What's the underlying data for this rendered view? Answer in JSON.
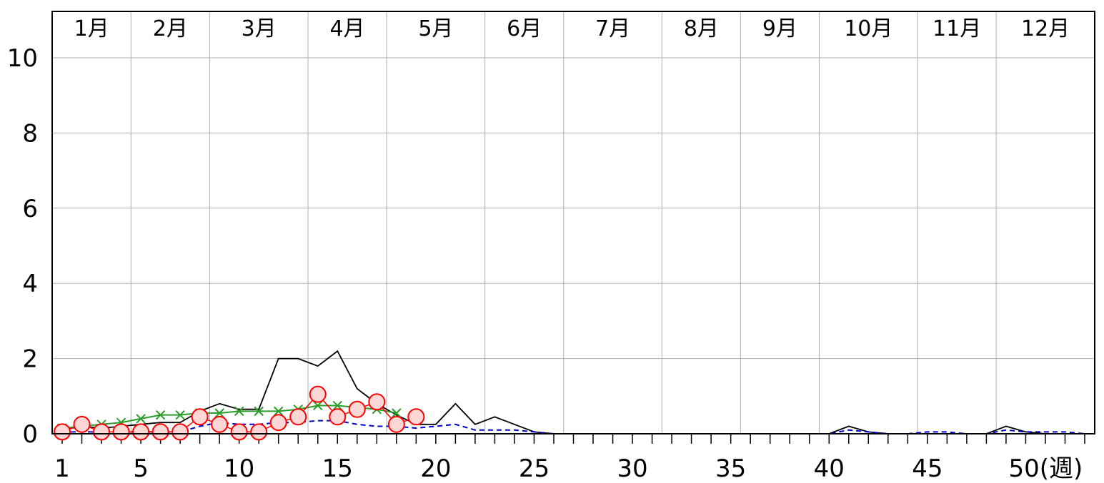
{
  "chart_data": {
    "type": "line",
    "x_unit_label": "(週)",
    "ylim": [
      0,
      10
    ],
    "xlim": [
      1,
      53
    ],
    "yticks": [
      0,
      2,
      4,
      6,
      8,
      10
    ],
    "xtick_labels": [
      {
        "week": 1,
        "label": "1"
      },
      {
        "week": 5,
        "label": "5"
      },
      {
        "week": 10,
        "label": "10"
      },
      {
        "week": 15,
        "label": "15"
      },
      {
        "week": 20,
        "label": "20"
      },
      {
        "week": 25,
        "label": "25"
      },
      {
        "week": 30,
        "label": "30"
      },
      {
        "week": 35,
        "label": "35"
      },
      {
        "week": 40,
        "label": "40"
      },
      {
        "week": 45,
        "label": "45"
      },
      {
        "week": 50,
        "label": "50(週)"
      }
    ],
    "months": [
      {
        "label": "1月",
        "start_week": 1,
        "end_week": 4
      },
      {
        "label": "2月",
        "start_week": 5,
        "end_week": 8
      },
      {
        "label": "3月",
        "start_week": 9,
        "end_week": 13
      },
      {
        "label": "4月",
        "start_week": 14,
        "end_week": 17
      },
      {
        "label": "5月",
        "start_week": 18,
        "end_week": 22
      },
      {
        "label": "6月",
        "start_week": 23,
        "end_week": 26
      },
      {
        "label": "7月",
        "start_week": 27,
        "end_week": 31
      },
      {
        "label": "8月",
        "start_week": 32,
        "end_week": 35
      },
      {
        "label": "9月",
        "start_week": 36,
        "end_week": 39
      },
      {
        "label": "10月",
        "start_week": 40,
        "end_week": 44
      },
      {
        "label": "11月",
        "start_week": 45,
        "end_week": 48
      },
      {
        "label": "12月",
        "start_week": 49,
        "end_week": 53
      }
    ],
    "grid": true,
    "series": [
      {
        "style": "black-solid",
        "color": "#000000",
        "x": [
          1,
          2,
          3,
          4,
          5,
          6,
          7,
          8,
          9,
          10,
          11,
          12,
          13,
          14,
          15,
          16,
          17,
          18,
          19,
          20,
          21,
          22,
          23,
          24,
          25,
          26,
          27,
          28,
          29,
          30,
          31,
          32,
          33,
          34,
          35,
          36,
          37,
          38,
          39,
          40,
          41,
          42,
          43,
          44,
          45,
          46,
          47,
          48,
          49,
          50,
          51,
          52,
          53
        ],
        "values": [
          0.1,
          0.2,
          0.15,
          0.2,
          0.25,
          0.3,
          0.3,
          0.6,
          0.8,
          0.65,
          0.65,
          2.0,
          2.0,
          1.8,
          2.2,
          1.2,
          0.8,
          0.5,
          0.25,
          0.25,
          0.8,
          0.25,
          0.45,
          0.25,
          0.05,
          0,
          0,
          0,
          0,
          0,
          0,
          0,
          0,
          0,
          0,
          0,
          0,
          0,
          0,
          0,
          0.2,
          0.05,
          0,
          0,
          0,
          0,
          0,
          0,
          0.2,
          0.05,
          0,
          0,
          0
        ]
      },
      {
        "style": "blue-dashed",
        "color": "#0000cc",
        "x": [
          1,
          2,
          3,
          4,
          5,
          6,
          7,
          8,
          9,
          10,
          11,
          12,
          13,
          14,
          15,
          16,
          17,
          18,
          19,
          20,
          21,
          22,
          23,
          24,
          25,
          26,
          27,
          28,
          29,
          30,
          31,
          32,
          33,
          34,
          35,
          36,
          37,
          38,
          39,
          40,
          41,
          42,
          43,
          44,
          45,
          46,
          47,
          48,
          49,
          50,
          51,
          52,
          53
        ],
        "values": [
          0.05,
          0.05,
          0.05,
          0.05,
          0.05,
          0.05,
          0.05,
          0.2,
          0.3,
          0.25,
          0.25,
          0.3,
          0.3,
          0.35,
          0.35,
          0.25,
          0.2,
          0.2,
          0.15,
          0.2,
          0.25,
          0.1,
          0.1,
          0.1,
          0.05,
          0,
          0,
          0,
          0,
          0,
          0,
          0,
          0,
          0,
          0,
          0,
          0,
          0,
          0,
          0,
          0.1,
          0.05,
          0,
          0,
          0.05,
          0.05,
          0,
          0,
          0.1,
          0.05,
          0.05,
          0.05,
          0
        ]
      },
      {
        "style": "green-x",
        "color": "#2a9d2a",
        "x": [
          1,
          2,
          3,
          4,
          5,
          6,
          7,
          8,
          9,
          10,
          11,
          12,
          13,
          14,
          15,
          16,
          17,
          18
        ],
        "values": [
          0.15,
          0.2,
          0.25,
          0.3,
          0.4,
          0.5,
          0.5,
          0.55,
          0.55,
          0.6,
          0.6,
          0.6,
          0.65,
          0.75,
          0.75,
          0.7,
          0.65,
          0.55
        ]
      },
      {
        "style": "red-circle",
        "color": "#ff0000",
        "x": [
          1,
          2,
          3,
          4,
          5,
          6,
          7,
          8,
          9,
          10,
          11,
          12,
          13,
          14,
          15,
          16,
          17,
          18,
          19
        ],
        "values": [
          0.05,
          0.25,
          0.05,
          0.05,
          0.05,
          0.05,
          0.05,
          0.45,
          0.25,
          0.05,
          0.05,
          0.3,
          0.45,
          1.05,
          0.45,
          0.65,
          0.85,
          0.25,
          0.45
        ]
      }
    ]
  }
}
